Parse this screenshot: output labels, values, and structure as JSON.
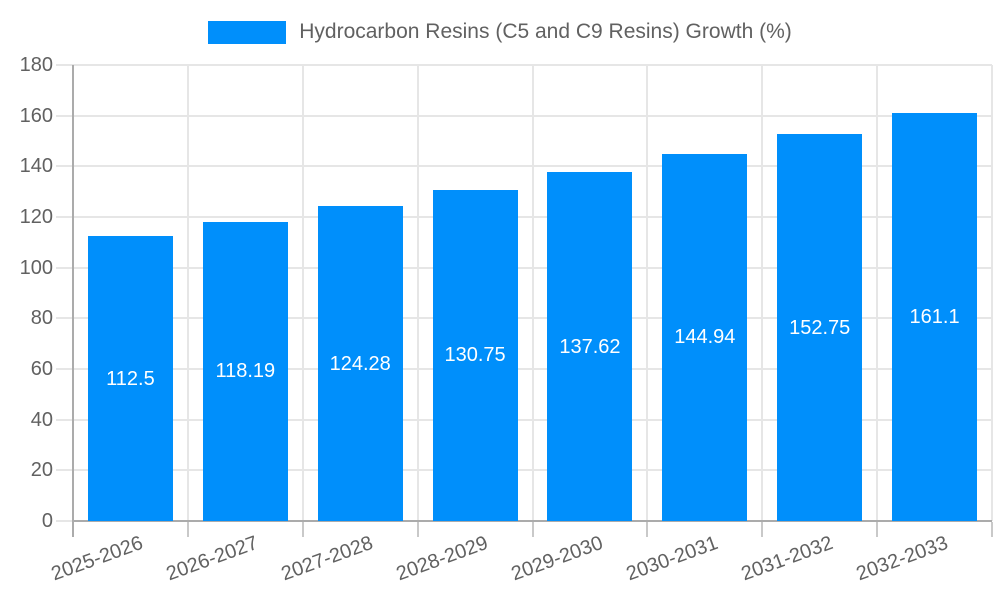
{
  "legend": {
    "label": "Hydrocarbon Resins (C5 and C9 Resins) Growth (%)"
  },
  "chart_data": {
    "type": "bar",
    "title": "",
    "xlabel": "",
    "ylabel": "",
    "categories": [
      "2025-2026",
      "2026-2027",
      "2027-2028",
      "2028-2029",
      "2029-2030",
      "2030-2031",
      "2031-2032",
      "2032-2033"
    ],
    "series": [
      {
        "name": "Hydrocarbon Resins (C5 and C9 Resins) Growth (%)",
        "values": [
          112.5,
          118.19,
          124.28,
          130.75,
          137.62,
          144.94,
          152.75,
          161.1
        ]
      }
    ],
    "value_labels": [
      "112.5",
      "118.19",
      "124.28",
      "130.75",
      "137.62",
      "144.94",
      "152.75",
      "161.1"
    ],
    "ylim": [
      0,
      180
    ],
    "yticks": [
      0,
      20,
      40,
      60,
      80,
      100,
      120,
      140,
      160,
      180
    ],
    "grid": true,
    "legend_position": "top",
    "x_label_rotation_deg": -20,
    "colors": {
      "bar": "#008FFB",
      "value_label": "#FFFFFF",
      "axis_text": "#616161",
      "gridline": "#E6E6E6",
      "axis_line": "#ABABAB",
      "x_tick": "#C9C9C9",
      "background": "#FFFFFF"
    }
  }
}
